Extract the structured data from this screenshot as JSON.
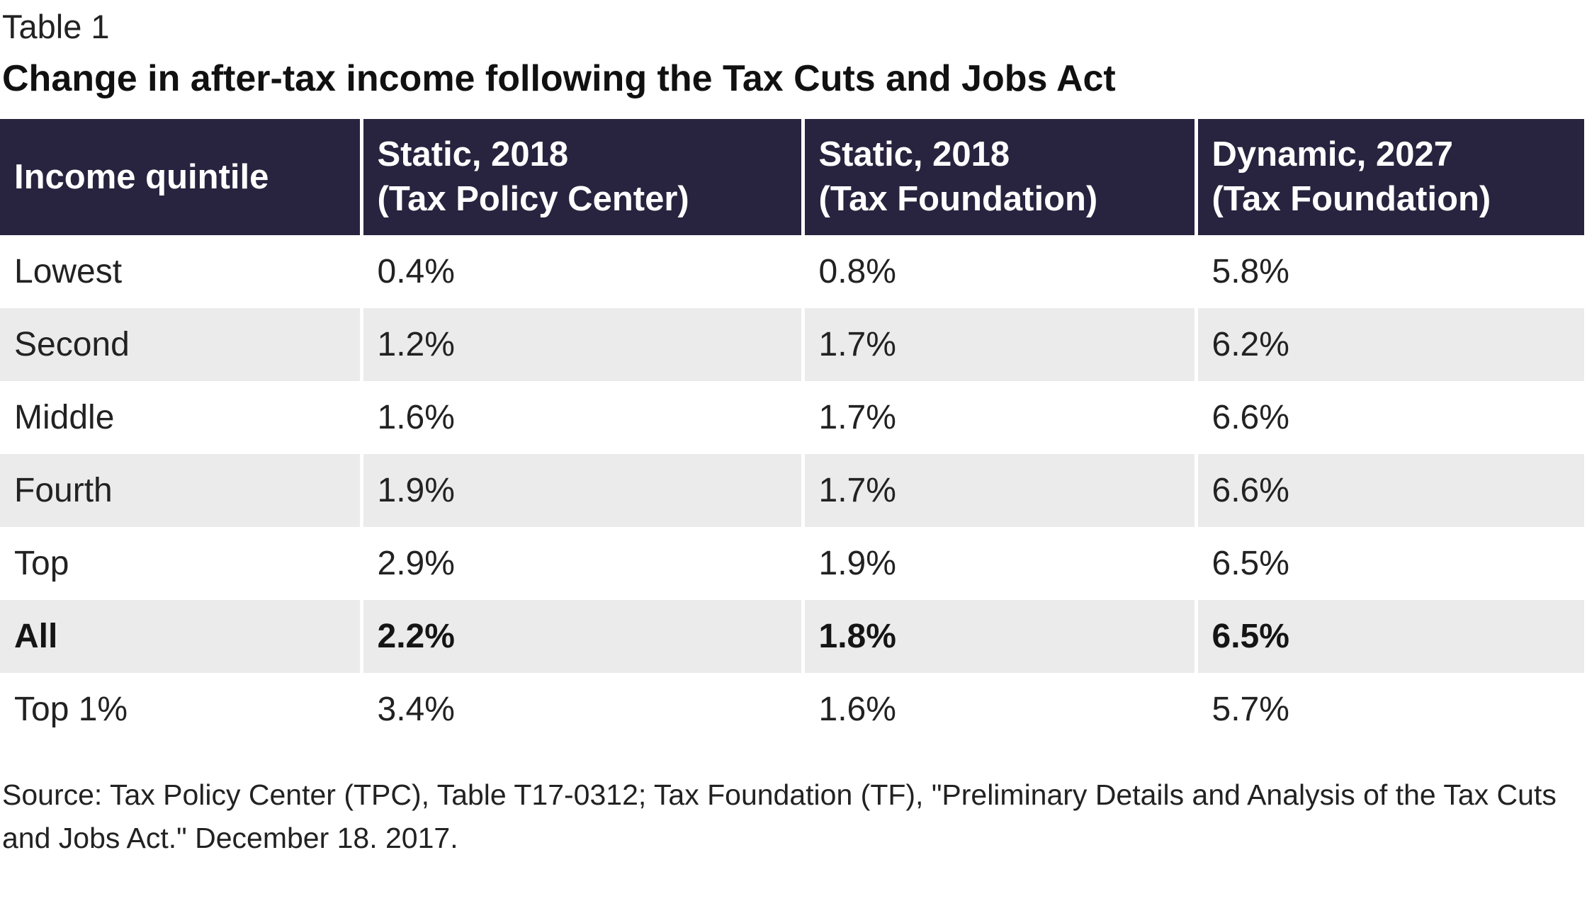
{
  "table_label": "Table 1",
  "title": "Change in after-tax income following the Tax Cuts and Jobs Act",
  "headers": [
    {
      "line1": "Income quintile",
      "line2": ""
    },
    {
      "line1": "Static, 2018",
      "line2": "(Tax Policy Center)"
    },
    {
      "line1": "Static, 2018",
      "line2": "(Tax Foundation)"
    },
    {
      "line1": "Dynamic, 2027",
      "line2": "(Tax Foundation)"
    }
  ],
  "rows": [
    {
      "quintile": "Lowest",
      "tpc_2018": "0.4%",
      "tf_2018": "0.8%",
      "tf_2027": "5.8%"
    },
    {
      "quintile": "Second",
      "tpc_2018": "1.2%",
      "tf_2018": "1.7%",
      "tf_2027": "6.2%"
    },
    {
      "quintile": "Middle",
      "tpc_2018": "1.6%",
      "tf_2018": "1.7%",
      "tf_2027": "6.6%"
    },
    {
      "quintile": "Fourth",
      "tpc_2018": "1.9%",
      "tf_2018": "1.7%",
      "tf_2027": "6.6%"
    },
    {
      "quintile": "Top",
      "tpc_2018": "2.9%",
      "tf_2018": "1.9%",
      "tf_2027": "6.5%"
    },
    {
      "quintile": "All",
      "tpc_2018": "2.2%",
      "tf_2018": "1.8%",
      "tf_2027": "6.5%"
    },
    {
      "quintile": "Top 1%",
      "tpc_2018": "3.4%",
      "tf_2018": "1.6%",
      "tf_2027": "5.7%"
    }
  ],
  "source": "Source: Tax Policy Center (TPC), Table T17-0312; Tax Foundation (TF), \"Preliminary Details and Analysis of the Tax Cuts and Jobs Act.\" December 18. 2017.",
  "colors": {
    "header_bg": "#28233e",
    "header_text": "#ffffff",
    "stripe_bg": "#ebebeb"
  }
}
